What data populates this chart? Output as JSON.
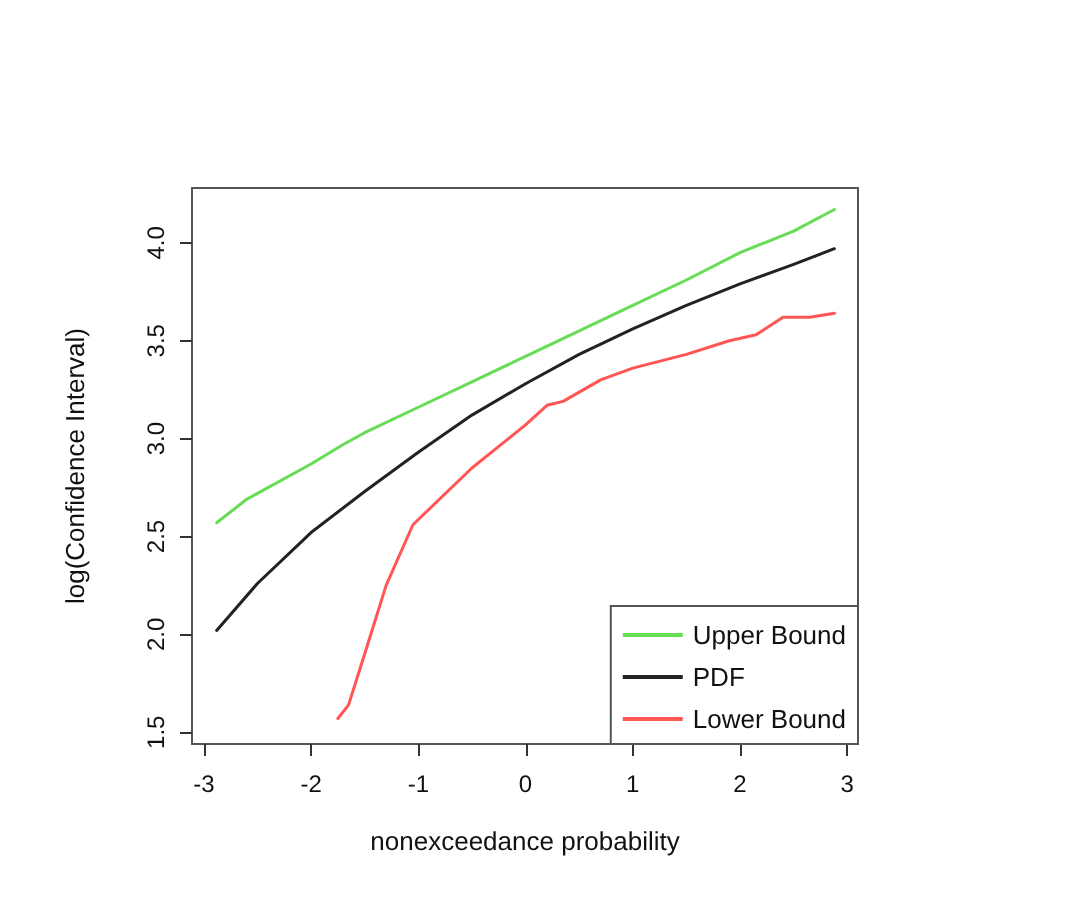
{
  "chart_data": {
    "type": "line",
    "xlabel": "nonexceedance probability",
    "ylabel": "log(Confidence Interval)",
    "xlim": [
      -3.11,
      3.1
    ],
    "ylim": [
      1.44,
      4.28
    ],
    "xticks": [
      -3,
      -2,
      -1,
      0,
      1,
      2,
      3
    ],
    "yticks": [
      1.5,
      {
        "value": 2,
        "label": "2.0"
      },
      2.5,
      {
        "value": 3,
        "label": "3.0"
      },
      3.5,
      {
        "value": 4,
        "label": "4.0"
      }
    ],
    "grid": false,
    "legend": "bottom right",
    "marker": "none",
    "line_style": "solid",
    "series": [
      {
        "name": "Upper Bound",
        "color": "#66dd55",
        "x": [
          -2.88,
          -2.6,
          -2,
          -1.7,
          -1.5,
          -1,
          -0.5,
          0,
          0.5,
          1,
          1.5,
          2,
          2.5,
          2.88
        ],
        "values": [
          2.57,
          2.69,
          2.87,
          2.97,
          3.03,
          3.16,
          3.29,
          3.42,
          3.55,
          3.68,
          3.81,
          3.95,
          4.06,
          4.17
        ]
      },
      {
        "name": "PDF",
        "color": "#222222",
        "x": [
          -2.88,
          -2.5,
          -2,
          -1.5,
          -1,
          -0.5,
          0,
          0.5,
          1,
          1.5,
          2,
          2.5,
          2.88
        ],
        "values": [
          2.02,
          2.26,
          2.52,
          2.73,
          2.93,
          3.12,
          3.28,
          3.43,
          3.56,
          3.68,
          3.79,
          3.89,
          3.97
        ]
      },
      {
        "name": "Lower Bound",
        "color": "#ff5555",
        "x": [
          -1.75,
          -1.65,
          -1.5,
          -1.3,
          -1.05,
          -0.5,
          0,
          0.2,
          0.35,
          0.7,
          1,
          1.5,
          1.9,
          2.15,
          2.4,
          2.65,
          2.88
        ],
        "values": [
          1.57,
          1.64,
          1.9,
          2.25,
          2.56,
          2.85,
          3.07,
          3.17,
          3.19,
          3.3,
          3.36,
          3.43,
          3.5,
          3.53,
          3.62,
          3.62,
          3.64
        ]
      }
    ]
  }
}
